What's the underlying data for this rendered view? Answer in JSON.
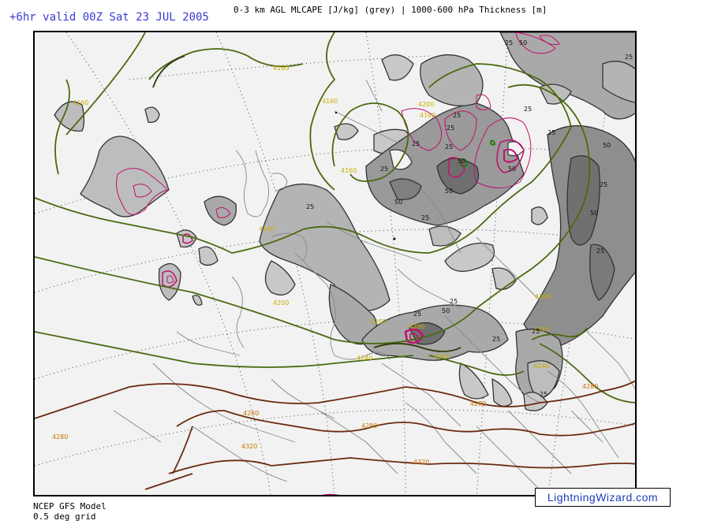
{
  "header": {
    "valid_time": "+6hr valid 00Z Sat 23 JUL 2005",
    "product": "0-3 km AGL MLCAPE [J/kg] (grey) | 1000-600 hPa Thickness [m]"
  },
  "footer": {
    "model": "NCEP GFS Model",
    "grid": "0.5 deg grid",
    "brand": "LightningWizard.com"
  },
  "thickness_labels": [
    "4160",
    "4160",
    "4160",
    "4160",
    "4160",
    "4160",
    "4200",
    "4200",
    "4200",
    "4200",
    "4200",
    "4240",
    "4240",
    "4240",
    "4240",
    "4280",
    "4280",
    "4280",
    "4280",
    "4280",
    "4320",
    "4320"
  ],
  "cape_labels": [
    "25",
    "25",
    "25",
    "25",
    "25",
    "25",
    "25",
    "25",
    "25",
    "25",
    "25",
    "25",
    "25",
    "25",
    "25",
    "25",
    "25",
    "25",
    "50",
    "50",
    "50",
    "50",
    "50",
    "50",
    "50",
    "50"
  ],
  "colors": {
    "thickness_green": "#4a6a10",
    "thickness_dark": "#2a3a08",
    "thickness_brown": "#6a2a10",
    "cape_magenta": "#c01070",
    "cape_grey": "#555555",
    "coast": "#888888",
    "label_yellow": "#c8b000",
    "label_orange": "#c87000",
    "brand_blue": "#1b3db8"
  }
}
